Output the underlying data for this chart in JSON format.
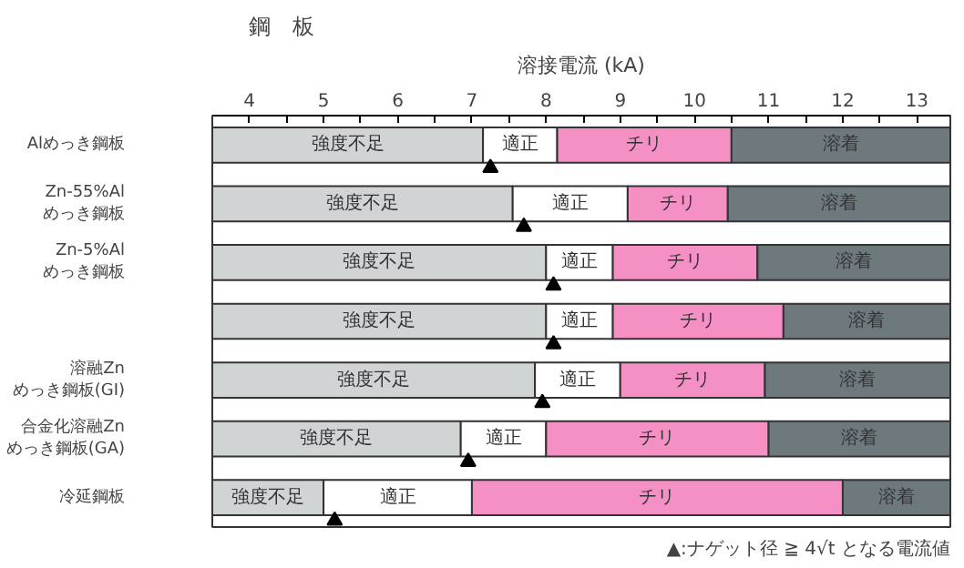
{
  "chart_data": {
    "type": "bar",
    "orientation": "horizontal",
    "xlabel": "溶接電流 (kA)",
    "ylabel": "鋼　板",
    "categories": [
      "Alめっき鋼板",
      "Zn-55%Al\nめっき鋼板",
      "Zn-5%Al\nめっき鋼板",
      null,
      "溶融Zn\nめっき鋼板(GI)",
      "合金化溶融Zn\nめっき鋼板(GA)",
      "冷延鋼板"
    ],
    "series": [
      {
        "name": "強度不足",
        "color": "#d0d4d4",
        "base": [
          3.5,
          3.5,
          3.5,
          3.5,
          3.5,
          3.5,
          3.5
        ],
        "values": [
          3.65,
          4.05,
          4.5,
          4.5,
          4.35,
          3.35,
          1.5
        ]
      },
      {
        "name": "適正",
        "color": "#ffffff",
        "base": [
          7.15,
          7.55,
          8.0,
          8.0,
          7.85,
          6.85,
          5.0
        ],
        "values": [
          1.0,
          1.55,
          0.9,
          0.9,
          1.15,
          1.15,
          2.0
        ]
      },
      {
        "name": "チリ",
        "color": "#f490c4",
        "base": [
          8.15,
          9.1,
          8.9,
          8.9,
          9.0,
          8.0,
          7.0
        ],
        "values": [
          2.35,
          1.35,
          1.95,
          2.3,
          1.95,
          3.0,
          5.0
        ]
      },
      {
        "name": "溶着",
        "color": "#6e797d",
        "base": [
          10.5,
          10.45,
          10.85,
          11.2,
          10.95,
          11.0,
          12.0
        ],
        "values": [
          2.95,
          3.0,
          2.6,
          2.25,
          2.5,
          2.45,
          1.45
        ]
      },
      {
        "type": "scatter",
        "marker": "triangle",
        "color": "#000000",
        "values": [
          7.25,
          7.7,
          8.1,
          8.1,
          7.95,
          6.95,
          5.15
        ]
      }
    ],
    "xlim": [
      3.5,
      13.45
    ],
    "xticks": [
      {
        "value": 3.5,
        "label": null
      },
      4,
      {
        "value": 4.5,
        "label": null
      },
      5,
      {
        "value": 5.5,
        "label": null
      },
      6,
      {
        "value": 6.5,
        "label": null
      },
      7,
      {
        "value": 7.5,
        "label": null
      },
      8,
      {
        "value": 8.5,
        "label": null
      },
      9,
      {
        "value": 9.5,
        "label": null
      },
      10,
      {
        "value": 10.5,
        "label": null
      },
      11,
      {
        "value": 11.5,
        "label": null
      },
      12,
      {
        "value": 12.5,
        "label": null
      },
      13
    ],
    "annotations": [
      "▲:ナゲット径 ≧ 4√t となる電流値"
    ],
    "grid": false
  }
}
